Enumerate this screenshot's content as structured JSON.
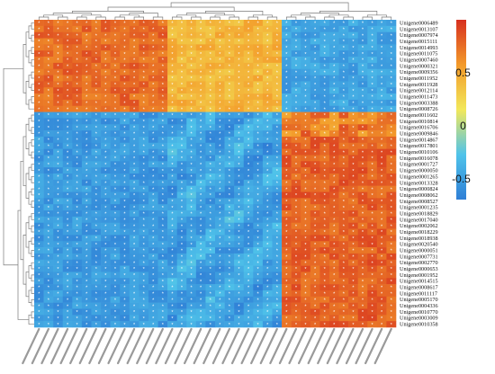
{
  "chart_data": {
    "type": "heatmap",
    "title": "",
    "xlabel": "",
    "ylabel": "",
    "rows": [
      "Unigene0006489",
      "Unigene0013107",
      "Unigene0007974",
      "Unigene0015111",
      "Unigene0014993",
      "Unigene0011075",
      "Unigene0007460",
      "Unigene0000321",
      "Unigene0009356",
      "Unigene0011952",
      "Unigene0011928",
      "Unigene0012114",
      "Unigene0011473",
      "Unigene0003388",
      "Unigene0008726",
      "Unigene0011602",
      "Unigene0010814",
      "Unigene0016706",
      "Unigene0009846",
      "Unigene0014867",
      "Unigene0017801",
      "Unigene0010106",
      "Unigene0016078",
      "Unigene0001727",
      "Unigene0000050",
      "Unigene0001265",
      "Unigene0013328",
      "Unigene0000824",
      "Unigene0008062",
      "Unigene0008527",
      "Unigene0001235",
      "Unigene0018829",
      "Unigene0017040",
      "Unigene0002062",
      "Unigene0018229",
      "Unigene0018938",
      "Unigene0020540",
      "Unigene0000051",
      "Unigene0007731",
      "Unigene0002770",
      "Unigene0000653",
      "Unigene0001952",
      "Unigene0014515",
      "Unigene0008617",
      "Unigene0011117",
      "Unigene0005170",
      "Unigene0004336",
      "Unigene0010770",
      "Unigene0003009",
      "Unigene0010358"
    ],
    "colorbar": {
      "ticks": [
        "0.5",
        "0",
        "-0.5"
      ],
      "tick_values": [
        0.5,
        0,
        -0.5
      ],
      "range": [
        -0.85,
        0.85
      ],
      "colors": [
        "#2f7fd6",
        "#4fc3ea",
        "#f2e85a",
        "#f39a2a",
        "#d7301f"
      ]
    },
    "column_groups": [
      {
        "count": 14,
        "top_block": 0.62,
        "bottom_block": -0.68
      },
      {
        "count": 12,
        "top_block": 0.28,
        "bottom_block": -0.62
      },
      {
        "count": 12,
        "top_block": -0.62,
        "bottom_block": 0.66
      }
    ],
    "top_block_rows": 15,
    "dendrogram": true,
    "cell_markers": "*"
  }
}
